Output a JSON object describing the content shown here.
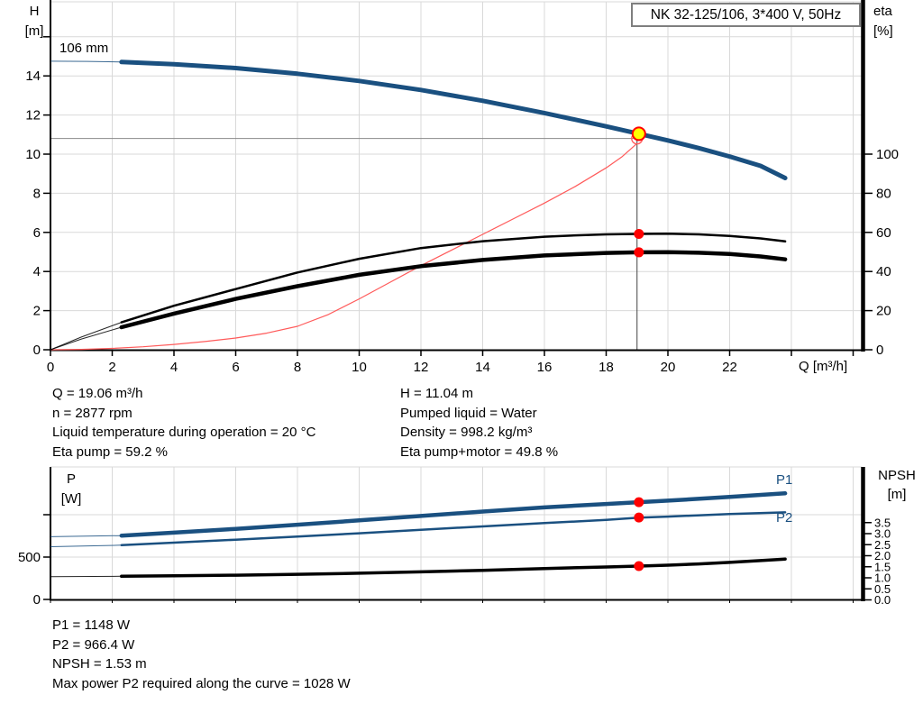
{
  "title_box": {
    "label": "NK 32-125/106, 3*400 V, 50Hz"
  },
  "info_top": {
    "left": [
      "Q = 19.06 m³/h",
      "n = 2877 rpm",
      "Liquid temperature during operation = 20 °C",
      "Eta pump = 59.2 %"
    ],
    "right": [
      "H = 11.04 m",
      "Pumped liquid = Water",
      "Density = 998.2 kg/m³",
      "Eta pump+motor = 49.8 %"
    ]
  },
  "info_bottom": [
    "P1 = 1148 W",
    "P2 = 966.4 W",
    "NPSH = 1.53 m",
    "Max power P2 required along the curve = 1028 W"
  ],
  "colors": {
    "curve_blue": "#1a5080",
    "black": "#000000",
    "duty_red": "#ff0000",
    "duty_yellow": "#ffff00",
    "parabola_red": "#ff5a5a",
    "grid": "#d9d9d9",
    "crosshair_v": "#444444",
    "crosshair_h": "#888888"
  },
  "chart_data": [
    {
      "type": "line",
      "title": "NK 32-125/106, 3*400 V, 50Hz",
      "impeller_label": "106 mm",
      "axis_labels": {
        "left_1": "H",
        "left_2": "[m]",
        "right_1": "eta",
        "right_2": "[%]",
        "x": "Q [m³/h]"
      },
      "xlim": [
        0,
        26.3
      ],
      "ylim": [
        0,
        17.9
      ],
      "ylim_right": [
        0,
        103
      ],
      "x_ticks": [
        0,
        2,
        4,
        6,
        8,
        10,
        12,
        14,
        16,
        18,
        20,
        22,
        24,
        26
      ],
      "x_tick_label_max": 22,
      "y_ticks": [
        0,
        2,
        4,
        6,
        8,
        10,
        12,
        14,
        16
      ],
      "y_tick_label_max": 14,
      "y_ticks_right": [
        0,
        20,
        40,
        60,
        80,
        100
      ],
      "grid": true,
      "series": [
        {
          "name": "head-curve",
          "label": "106 mm",
          "axis": "left",
          "color": "#1a5080",
          "width": 5,
          "thin_until": 2.3,
          "points": [
            [
              0,
              14.75
            ],
            [
              1.2,
              14.74
            ],
            [
              2.3,
              14.71
            ],
            [
              4,
              14.6
            ],
            [
              6,
              14.4
            ],
            [
              8,
              14.11
            ],
            [
              10,
              13.74
            ],
            [
              12,
              13.28
            ],
            [
              14,
              12.73
            ],
            [
              16,
              12.1
            ],
            [
              18,
              11.42
            ],
            [
              19.06,
              11.04
            ],
            [
              20,
              10.7
            ],
            [
              21,
              10.31
            ],
            [
              22,
              9.88
            ],
            [
              23,
              9.4
            ],
            [
              23.8,
              8.78
            ]
          ]
        },
        {
          "name": "duty-parabola",
          "label": "duty parabola",
          "axis": "left",
          "color": "#ff5a5a",
          "width": 1.2,
          "points": [
            [
              0,
              0
            ],
            [
              1,
              0.02
            ],
            [
              2,
              0.07
            ],
            [
              3,
              0.15
            ],
            [
              4,
              0.27
            ],
            [
              5,
              0.42
            ],
            [
              6,
              0.6
            ],
            [
              7,
              0.85
            ],
            [
              8,
              1.2
            ],
            [
              9,
              1.8
            ],
            [
              10,
              2.6
            ],
            [
              11,
              3.45
            ],
            [
              12,
              4.3
            ],
            [
              13,
              5.1
            ],
            [
              14,
              5.9
            ],
            [
              15,
              6.7
            ],
            [
              16,
              7.5
            ],
            [
              17,
              8.35
            ],
            [
              18,
              9.3
            ],
            [
              18.5,
              9.85
            ],
            [
              19,
              10.55
            ]
          ]
        },
        {
          "name": "eta-pump-curve",
          "label": "eta pump",
          "axis": "right",
          "color": "#000000",
          "width": 2.5,
          "thin_until": 2.3,
          "points": [
            [
              0,
              0
            ],
            [
              1,
              6.5
            ],
            [
              2.3,
              14
            ],
            [
              4,
              22.5
            ],
            [
              6,
              31
            ],
            [
              8,
              39.5
            ],
            [
              10,
              46.5
            ],
            [
              12,
              52
            ],
            [
              14,
              55.5
            ],
            [
              16,
              57.8
            ],
            [
              17,
              58.5
            ],
            [
              18,
              59
            ],
            [
              19.06,
              59.2
            ],
            [
              20,
              59.3
            ],
            [
              21,
              59
            ],
            [
              22,
              58.2
            ],
            [
              23,
              56.9
            ],
            [
              23.8,
              55.4
            ]
          ]
        },
        {
          "name": "eta-pump-motor-curve",
          "label": "eta pump+motor",
          "axis": "right",
          "color": "#000000",
          "width": 4.5,
          "thin_until": 2.3,
          "points": [
            [
              0,
              0
            ],
            [
              1,
              5.5
            ],
            [
              2.3,
              11.5
            ],
            [
              4,
              18.5
            ],
            [
              6,
              26
            ],
            [
              8,
              32.5
            ],
            [
              10,
              38.3
            ],
            [
              12,
              42.7
            ],
            [
              14,
              45.9
            ],
            [
              16,
              48.2
            ],
            [
              18,
              49.5
            ],
            [
              19.06,
              49.8
            ],
            [
              20,
              49.9
            ],
            [
              21,
              49.6
            ],
            [
              22,
              49
            ],
            [
              23,
              47.7
            ],
            [
              23.8,
              46.2
            ]
          ]
        }
      ],
      "duty": {
        "q": 19.06,
        "h": 11.04,
        "eta_pump": 59.2,
        "eta_pump_motor": 49.8,
        "crosshair_q": 19.0,
        "crosshair_h": 10.8
      }
    },
    {
      "type": "line",
      "axis_labels": {
        "left_1": "P",
        "left_2": "[W]",
        "right_1": "NPSH",
        "right_2": "[m]"
      },
      "xlim": [
        0,
        26.3
      ],
      "ylim": [
        0,
        1564
      ],
      "ylim_right": [
        0,
        6.0
      ],
      "y_ticks": [
        0,
        500,
        1000
      ],
      "y_tick_labels": [
        "0",
        "500",
        ""
      ],
      "y_ticks_right": [
        0.0,
        0.5,
        1.0,
        1.5,
        2.0,
        2.5,
        3.0,
        3.5
      ],
      "grid": true,
      "series": [
        {
          "name": "p1-curve",
          "label": "P1",
          "axis": "left",
          "color": "#1a5080",
          "width": 4.5,
          "thin_until": 2.3,
          "points": [
            [
              0,
              740
            ],
            [
              2.3,
              753
            ],
            [
              4,
              788
            ],
            [
              6,
              833
            ],
            [
              8,
              882
            ],
            [
              10,
              933
            ],
            [
              12,
              985
            ],
            [
              14,
              1037
            ],
            [
              16,
              1086
            ],
            [
              18,
              1127
            ],
            [
              19.06,
              1148
            ],
            [
              20,
              1166
            ],
            [
              22,
              1210
            ],
            [
              23.8,
              1252
            ]
          ]
        },
        {
          "name": "p2-curve",
          "label": "P2",
          "axis": "left",
          "color": "#1a5080",
          "width": 2.5,
          "thin_until": 2.3,
          "points": [
            [
              0,
              622
            ],
            [
              2.3,
              640
            ],
            [
              4,
              670
            ],
            [
              6,
              705
            ],
            [
              8,
              742
            ],
            [
              10,
              781
            ],
            [
              12,
              822
            ],
            [
              14,
              862
            ],
            [
              16,
              901
            ],
            [
              18,
              938
            ],
            [
              19.06,
              966
            ],
            [
              20,
              978
            ],
            [
              22,
              1008
            ],
            [
              23.8,
              1028
            ]
          ]
        },
        {
          "name": "npsh-curve",
          "label": "NPSH",
          "axis": "right",
          "color": "#000000",
          "width": 3.5,
          "thin_until": 2.3,
          "points": [
            [
              0,
              1.05
            ],
            [
              2.3,
              1.07
            ],
            [
              4,
              1.09
            ],
            [
              6,
              1.12
            ],
            [
              8,
              1.16
            ],
            [
              10,
              1.21
            ],
            [
              12,
              1.27
            ],
            [
              14,
              1.34
            ],
            [
              16,
              1.42
            ],
            [
              18,
              1.49
            ],
            [
              19.06,
              1.53
            ],
            [
              20,
              1.57
            ],
            [
              21,
              1.63
            ],
            [
              22,
              1.7
            ],
            [
              23,
              1.78
            ],
            [
              23.8,
              1.85
            ]
          ]
        }
      ],
      "duty": {
        "q": 19.06,
        "p1": 1148,
        "p2": 966.4,
        "npsh": 1.53
      }
    }
  ]
}
